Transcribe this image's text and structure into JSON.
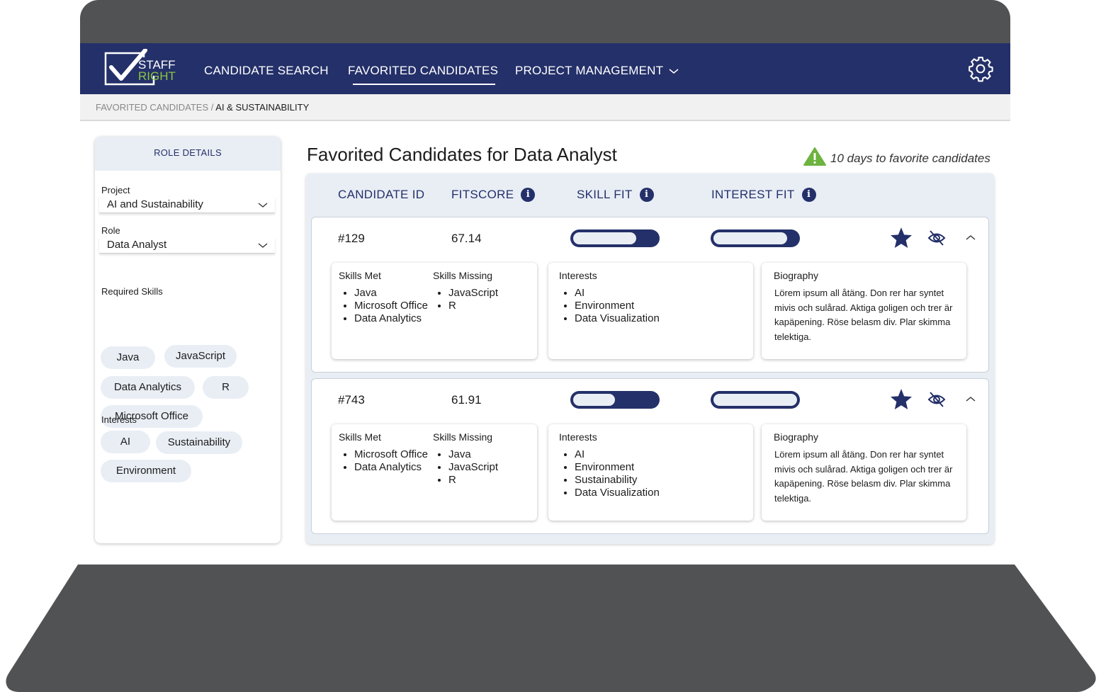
{
  "brand": {
    "line1": "STAFF",
    "line2": "RIGHT",
    "colors": {
      "navy": "#243069",
      "green": "#8cc63f"
    }
  },
  "nav": {
    "items": [
      {
        "label": "CANDIDATE SEARCH"
      },
      {
        "label": "FAVORITED CANDIDATES",
        "active": true
      },
      {
        "label": "PROJECT MANAGEMENT"
      }
    ],
    "settings_icon": "gear-icon"
  },
  "breadcrumb": {
    "parent": "FAVORITED CANDIDATES",
    "separator": " / ",
    "current": "AI & SUSTAINABILITY"
  },
  "sidebar": {
    "header": "ROLE DETAILS",
    "project_label": "Project",
    "project_value": "AI and Sustainability",
    "role_label": "Role",
    "role_value": "Data Analyst",
    "skills_label": "Required Skills",
    "skills": [
      "Java",
      "JavaScript",
      "Data Analytics",
      "R",
      "Microsoft Office"
    ],
    "interests_label": "Interests",
    "interests": [
      "AI",
      "Sustainability",
      "Environment"
    ]
  },
  "main": {
    "title": "Favorited Candidates for Data Analyst",
    "warning": "10 days to favorite candidates",
    "warning_color": "#6db33f",
    "columns": {
      "id": "CANDIDATE ID",
      "fitscore": "FITSCORE",
      "skill": "SKILL FIT",
      "interest": "INTEREST FIT",
      "info": "i"
    },
    "labels": {
      "skills_met": "Skills Met",
      "skills_missing": "Skills Missing",
      "interests": "Interests",
      "biography": "Biography"
    },
    "candidates": [
      {
        "id": "#129",
        "fitscore": "67.14",
        "skill_fit": 0.75,
        "interest_fit": 0.88,
        "skills_met": [
          "Java",
          "Microsoft Office",
          "Data Analytics"
        ],
        "skills_missing": [
          "JavaScript",
          "R"
        ],
        "interests": [
          "AI",
          "Environment",
          "Data Visualization"
        ],
        "bio": "Lörem ipsum all åtäng. Don rer har syntet mivis och sulårad. Aktiga goligen och trer är kapäpening. Röse belasm div. Plar skimma telektiga."
      },
      {
        "id": "#743",
        "fitscore": "61.91",
        "skill_fit": 0.5,
        "interest_fit": 1.0,
        "skills_met": [
          "Microsoft Office",
          "Data Analytics"
        ],
        "skills_missing": [
          "Java",
          "JavaScript",
          "R"
        ],
        "interests": [
          "AI",
          "Environment",
          "Sustainability",
          "Data Visualization"
        ],
        "bio": "Lörem ipsum all åtäng. Don rer har syntet mivis och sulårad. Aktiga goligen och trer är kapäpening. Röse belasm div. Plar skimma telektiga."
      }
    ]
  }
}
